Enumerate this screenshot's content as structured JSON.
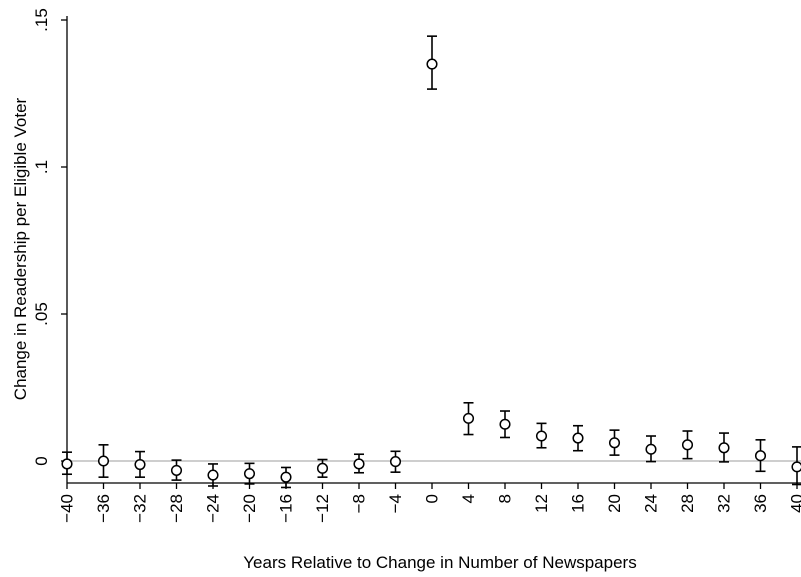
{
  "chart_data": {
    "type": "scatter",
    "title": "",
    "xlabel": "Years Relative to Change in Number of Newspapers",
    "ylabel": "Change in Readership per Eligible Voter",
    "xlim": [
      -40,
      40
    ],
    "ylim": [
      0,
      0.15
    ],
    "x_ticks": [
      -40,
      -36,
      -32,
      -28,
      -24,
      -20,
      -16,
      -12,
      -8,
      -4,
      0,
      4,
      8,
      12,
      16,
      20,
      24,
      28,
      32,
      36,
      40
    ],
    "x_tick_labels": [
      "−40",
      "−36",
      "−32",
      "−28",
      "−24",
      "−20",
      "−16",
      "−12",
      "−8",
      "−4",
      "0",
      "4",
      "8",
      "12",
      "16",
      "20",
      "24",
      "28",
      "32",
      "36",
      "40"
    ],
    "y_ticks": [
      0,
      0.05,
      0.1,
      0.15
    ],
    "y_tick_labels": [
      "0",
      ".05",
      ".1",
      ".15"
    ],
    "grid": false,
    "reference_line_y": 0,
    "series": [
      {
        "points": [
          {
            "x": -40,
            "y": -0.001,
            "lo": -0.0045,
            "hi": 0.003
          },
          {
            "x": -36,
            "y": 0.0,
            "lo": -0.0055,
            "hi": 0.0055
          },
          {
            "x": -32,
            "y": -0.0012,
            "lo": -0.0055,
            "hi": 0.0032
          },
          {
            "x": -28,
            "y": -0.0032,
            "lo": -0.0065,
            "hi": 0.0003
          },
          {
            "x": -24,
            "y": -0.0048,
            "lo": -0.0085,
            "hi": -0.001
          },
          {
            "x": -20,
            "y": -0.0043,
            "lo": -0.0078,
            "hi": -0.0008
          },
          {
            "x": -16,
            "y": -0.0055,
            "lo": -0.009,
            "hi": -0.0022
          },
          {
            "x": -12,
            "y": -0.0025,
            "lo": -0.0055,
            "hi": 0.0005
          },
          {
            "x": -8,
            "y": -0.001,
            "lo": -0.004,
            "hi": 0.0023
          },
          {
            "x": -4,
            "y": -0.0002,
            "lo": -0.0038,
            "hi": 0.0033
          },
          {
            "x": 0,
            "y": 0.135,
            "lo": 0.1265,
            "hi": 0.1445
          },
          {
            "x": 4,
            "y": 0.0145,
            "lo": 0.009,
            "hi": 0.0198
          },
          {
            "x": 8,
            "y": 0.0125,
            "lo": 0.008,
            "hi": 0.017
          },
          {
            "x": 12,
            "y": 0.0085,
            "lo": 0.0045,
            "hi": 0.0128
          },
          {
            "x": 16,
            "y": 0.0078,
            "lo": 0.0035,
            "hi": 0.012
          },
          {
            "x": 20,
            "y": 0.0062,
            "lo": 0.002,
            "hi": 0.0105
          },
          {
            "x": 24,
            "y": 0.004,
            "lo": -0.0002,
            "hi": 0.0085
          },
          {
            "x": 28,
            "y": 0.0055,
            "lo": 0.0008,
            "hi": 0.0102
          },
          {
            "x": 32,
            "y": 0.0045,
            "lo": -0.0003,
            "hi": 0.0095
          },
          {
            "x": 36,
            "y": 0.0018,
            "lo": -0.0035,
            "hi": 0.0072
          },
          {
            "x": 40,
            "y": -0.002,
            "lo": -0.008,
            "hi": 0.0048
          }
        ]
      }
    ]
  },
  "colors": {
    "marker": "#000000",
    "errorbar": "#000000",
    "axis": "#000000",
    "reference_line": "#bdbdbd",
    "background": "#ffffff"
  }
}
